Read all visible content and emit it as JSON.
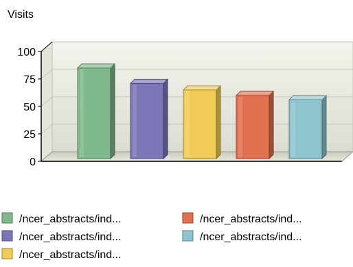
{
  "chart_data": {
    "type": "bar",
    "title": "Visits",
    "xlabel": "",
    "ylabel": "",
    "ylim": [
      0,
      100
    ],
    "yticks": [
      0,
      25,
      50,
      75,
      100
    ],
    "grid": true,
    "legend_position": "bottom",
    "categories": [
      "/ncer_abstracts/ind...",
      "/ncer_abstracts/ind...",
      "/ncer_abstracts/ind...",
      "/ncer_abstracts/ind...",
      "/ncer_abstracts/ind..."
    ],
    "values": [
      85,
      71,
      65,
      60,
      56
    ],
    "colors": [
      "#7fb88a",
      "#7a76b8",
      "#f0cc56",
      "#e0704f",
      "#8ec4cf"
    ]
  }
}
